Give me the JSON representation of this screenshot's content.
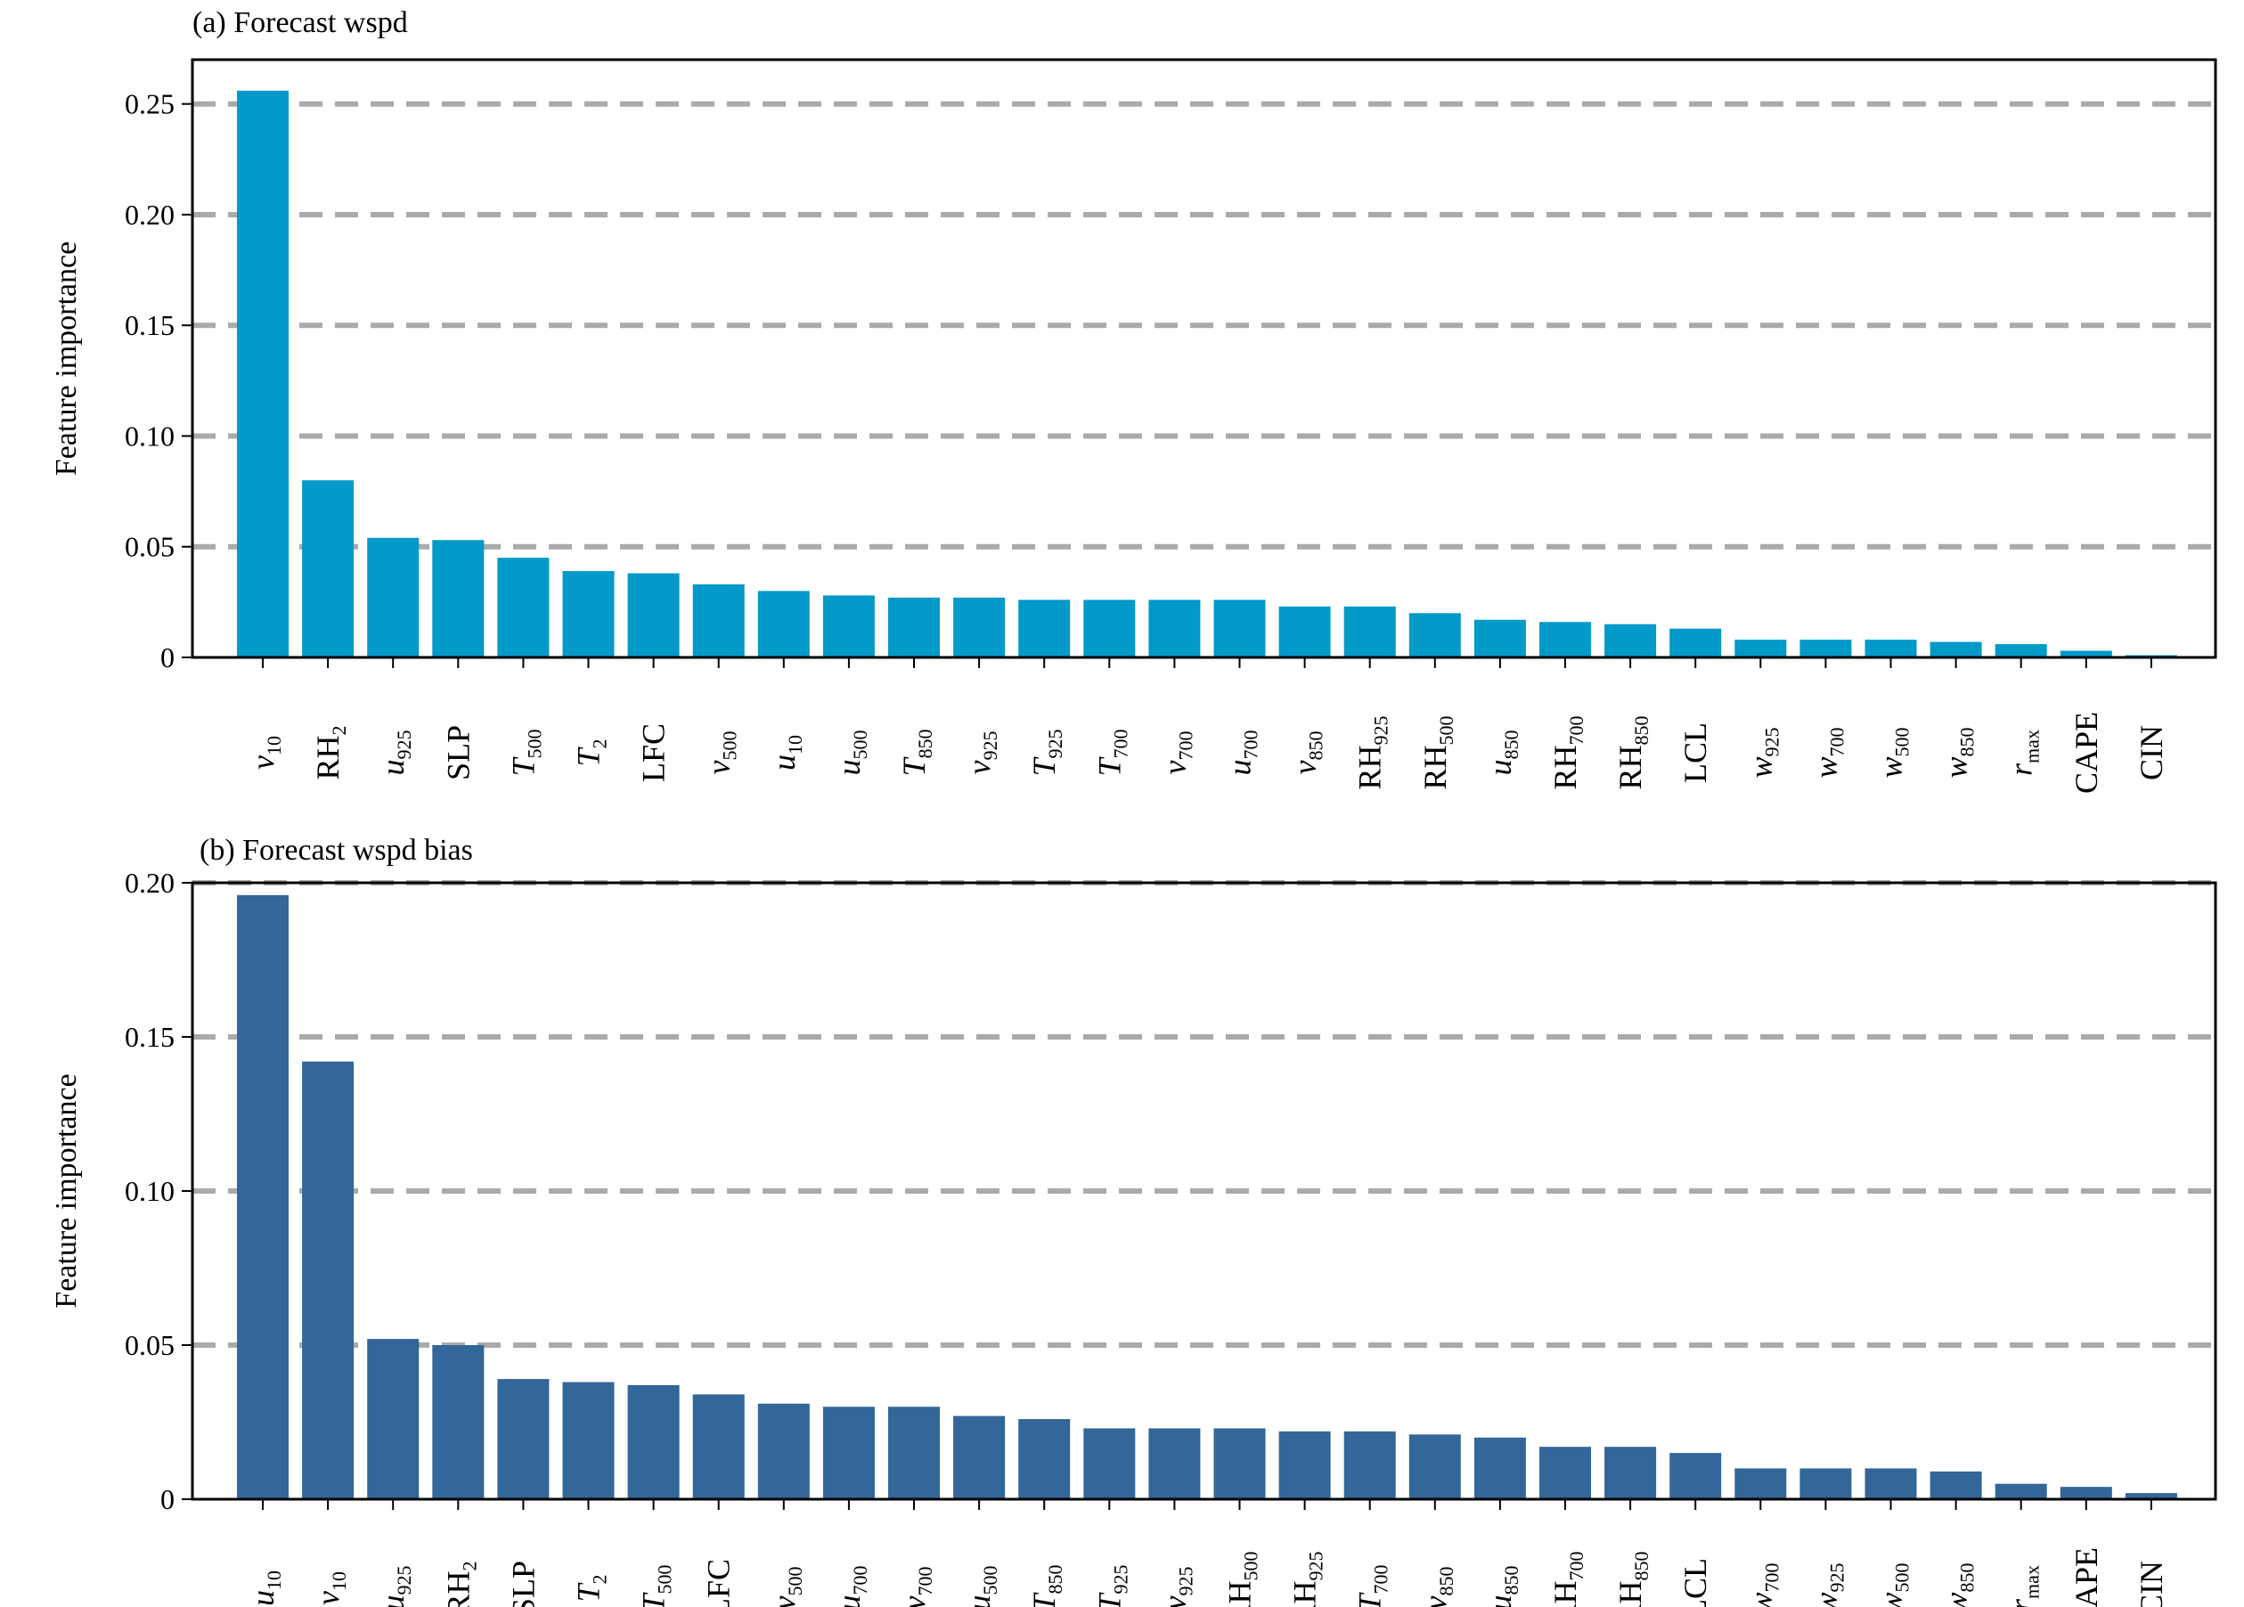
{
  "chart_data": [
    {
      "type": "bar",
      "title": "(a) Forecast wspd",
      "xlabel": "",
      "ylabel": "Feature importance",
      "ylim": [
        0,
        0.27
      ],
      "yticks": [
        0,
        0.05,
        0.1,
        0.15,
        0.2,
        0.25
      ],
      "ytick_labels": [
        "0",
        "0.05",
        "0.10",
        "0.15",
        "0.20",
        "0.25"
      ],
      "grid": "horizontal dashed gray at major ticks",
      "bar_color": "#0399c9",
      "categories": [
        {
          "main": "v",
          "sub": "10",
          "italic": true
        },
        {
          "main": "RH",
          "sub": "2",
          "italic": false
        },
        {
          "main": "u",
          "sub": "925",
          "italic": true
        },
        {
          "main": "SLP",
          "sub": "",
          "italic": false
        },
        {
          "main": "T",
          "sub": "500",
          "italic": true
        },
        {
          "main": "T",
          "sub": "2",
          "italic": true
        },
        {
          "main": "LFC",
          "sub": "",
          "italic": false
        },
        {
          "main": "v",
          "sub": "500",
          "italic": true
        },
        {
          "main": "u",
          "sub": "10",
          "italic": true
        },
        {
          "main": "u",
          "sub": "500",
          "italic": true
        },
        {
          "main": "T",
          "sub": "850",
          "italic": true
        },
        {
          "main": "v",
          "sub": "925",
          "italic": true
        },
        {
          "main": "T",
          "sub": "925",
          "italic": true
        },
        {
          "main": "T",
          "sub": "700",
          "italic": true
        },
        {
          "main": "v",
          "sub": "700",
          "italic": true
        },
        {
          "main": "u",
          "sub": "700",
          "italic": true
        },
        {
          "main": "v",
          "sub": "850",
          "italic": true
        },
        {
          "main": "RH",
          "sub": "925",
          "italic": false
        },
        {
          "main": "RH",
          "sub": "500",
          "italic": false
        },
        {
          "main": "u",
          "sub": "850",
          "italic": true
        },
        {
          "main": "RH",
          "sub": "700",
          "italic": false
        },
        {
          "main": "RH",
          "sub": "850",
          "italic": false
        },
        {
          "main": "LCL",
          "sub": "",
          "italic": false
        },
        {
          "main": "w",
          "sub": "925",
          "italic": true
        },
        {
          "main": "w",
          "sub": "700",
          "italic": true
        },
        {
          "main": "w",
          "sub": "500",
          "italic": true
        },
        {
          "main": "w",
          "sub": "850",
          "italic": true
        },
        {
          "main": "r",
          "sub": "max",
          "italic": true
        },
        {
          "main": "CAPE",
          "sub": "",
          "italic": false
        },
        {
          "main": "CIN",
          "sub": "",
          "italic": false
        }
      ],
      "values": [
        0.256,
        0.08,
        0.054,
        0.053,
        0.045,
        0.039,
        0.038,
        0.033,
        0.03,
        0.028,
        0.027,
        0.027,
        0.026,
        0.026,
        0.026,
        0.026,
        0.023,
        0.023,
        0.02,
        0.017,
        0.016,
        0.015,
        0.013,
        0.008,
        0.008,
        0.008,
        0.007,
        0.006,
        0.003,
        0.001
      ]
    },
    {
      "type": "bar",
      "title": "(b) Forecast wspd bias",
      "xlabel": "",
      "ylabel": "Feature importance",
      "ylim": [
        0,
        0.2
      ],
      "yticks": [
        0,
        0.05,
        0.1,
        0.15,
        0.2
      ],
      "ytick_labels": [
        "0",
        "0.05",
        "0.10",
        "0.15",
        "0.20"
      ],
      "grid": "horizontal dashed gray at major ticks",
      "bar_color": "#336699",
      "categories": [
        {
          "main": "u",
          "sub": "10",
          "italic": true
        },
        {
          "main": "v",
          "sub": "10",
          "italic": true
        },
        {
          "main": "u",
          "sub": "925",
          "italic": true
        },
        {
          "main": "RH",
          "sub": "2",
          "italic": false
        },
        {
          "main": "SLP",
          "sub": "",
          "italic": false
        },
        {
          "main": "T",
          "sub": "2",
          "italic": true
        },
        {
          "main": "T",
          "sub": "500",
          "italic": true
        },
        {
          "main": "LFC",
          "sub": "",
          "italic": false
        },
        {
          "main": "v",
          "sub": "500",
          "italic": true
        },
        {
          "main": "u",
          "sub": "700",
          "italic": true
        },
        {
          "main": "v",
          "sub": "700",
          "italic": true
        },
        {
          "main": "u",
          "sub": "500",
          "italic": true
        },
        {
          "main": "T",
          "sub": "850",
          "italic": true
        },
        {
          "main": "T",
          "sub": "925",
          "italic": true
        },
        {
          "main": "v",
          "sub": "925",
          "italic": true
        },
        {
          "main": "RH",
          "sub": "500",
          "italic": false
        },
        {
          "main": "RH",
          "sub": "925",
          "italic": false
        },
        {
          "main": "T",
          "sub": "700",
          "italic": true
        },
        {
          "main": "v",
          "sub": "850",
          "italic": true
        },
        {
          "main": "u",
          "sub": "850",
          "italic": true
        },
        {
          "main": "RH",
          "sub": "700",
          "italic": false
        },
        {
          "main": "RH",
          "sub": "850",
          "italic": false
        },
        {
          "main": "LCL",
          "sub": "",
          "italic": false
        },
        {
          "main": "w",
          "sub": "700",
          "italic": true
        },
        {
          "main": "w",
          "sub": "925",
          "italic": true
        },
        {
          "main": "w",
          "sub": "500",
          "italic": true
        },
        {
          "main": "w",
          "sub": "850",
          "italic": true
        },
        {
          "main": "r",
          "sub": "max",
          "italic": true
        },
        {
          "main": "CAPE",
          "sub": "",
          "italic": false
        },
        {
          "main": "CIN",
          "sub": "",
          "italic": false
        }
      ],
      "values": [
        0.196,
        0.142,
        0.052,
        0.05,
        0.039,
        0.038,
        0.037,
        0.034,
        0.031,
        0.03,
        0.03,
        0.027,
        0.026,
        0.023,
        0.023,
        0.023,
        0.022,
        0.022,
        0.021,
        0.02,
        0.017,
        0.017,
        0.015,
        0.01,
        0.01,
        0.01,
        0.009,
        0.005,
        0.004,
        0.002
      ]
    }
  ]
}
